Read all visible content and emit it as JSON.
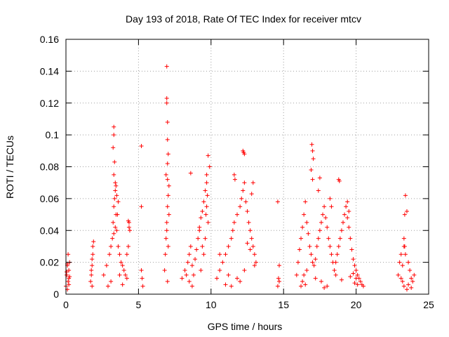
{
  "chart_data": {
    "type": "scatter",
    "title": "Day 193 of 2018, Rate Of TEC Index for receiver mtcv",
    "xlabel": "GPS time / hours",
    "ylabel": "ROTI / TECUs",
    "xlim": [
      0,
      25
    ],
    "ylim": [
      0,
      0.16
    ],
    "xticks": [
      0,
      5,
      10,
      15,
      20,
      25
    ],
    "xtick_labels": [
      "0",
      "5",
      "10",
      "15",
      "20",
      "25"
    ],
    "yticks": [
      0,
      0.02,
      0.04,
      0.06,
      0.08,
      0.1,
      0.12,
      0.14,
      0.16
    ],
    "ytick_labels": [
      "0",
      "0.02",
      "0.04",
      "0.06",
      "0.08",
      "0.1",
      "0.12",
      "0.14",
      "0.16"
    ],
    "grid": true,
    "marker": "+",
    "marker_color": "#ff0000",
    "series": [
      {
        "name": "ROTI",
        "x": [
          0.0,
          0.05,
          0.1,
          0.15,
          0.2,
          0.25,
          0.1,
          0.2,
          0.15,
          0.05,
          0.2,
          0.1,
          0.25,
          1.7,
          1.75,
          1.8,
          1.85,
          1.9,
          1.8,
          1.75,
          1.85,
          1.8,
          2.6,
          2.8,
          3.0,
          3.1,
          3.2,
          3.25,
          3.3,
          3.35,
          3.4,
          3.45,
          3.5,
          3.6,
          3.7,
          3.8,
          3.9,
          4.0,
          4.1,
          4.2,
          4.3,
          4.35,
          4.4,
          3.3,
          3.3,
          3.25,
          3.35,
          3.3,
          3.4,
          3.5,
          3.45,
          3.6,
          3.55,
          3.4,
          3.3,
          4.3,
          4.35,
          4.2,
          2.9,
          3.1,
          3.7,
          3.9,
          5.2,
          5.2,
          5.2,
          5.25,
          5.3,
          6.8,
          6.85,
          6.9,
          6.95,
          7.0,
          7.05,
          7.1,
          6.95,
          6.95,
          6.95,
          7.0,
          7.0,
          7.05,
          7.0,
          6.9,
          7.1,
          7.0,
          6.95,
          7.05,
          7.0,
          8.0,
          8.2,
          8.4,
          8.5,
          8.6,
          8.7,
          8.8,
          8.9,
          9.0,
          9.1,
          9.2,
          9.3,
          9.4,
          9.5,
          9.6,
          9.7,
          9.8,
          9.9,
          9.7,
          9.75,
          9.7,
          9.65,
          9.8,
          9.6,
          8.6,
          8.7,
          9.2,
          9.4,
          9.5,
          9.3,
          8.5,
          8.3,
          10.4,
          10.6,
          10.8,
          11.0,
          11.2,
          11.4,
          11.5,
          11.6,
          11.8,
          12.0,
          12.1,
          12.2,
          12.3,
          12.4,
          12.5,
          12.6,
          12.7,
          12.8,
          12.9,
          13.0,
          13.1,
          12.2,
          12.25,
          12.3,
          11.6,
          11.65,
          12.8,
          12.9,
          12.3,
          12.0,
          11.0,
          11.2,
          10.6,
          12.5,
          12.7,
          13.0,
          11.8,
          11.4,
          14.6,
          14.7,
          14.65,
          14.7,
          14.6,
          15.9,
          16.0,
          16.1,
          16.2,
          16.3,
          16.4,
          16.5,
          16.6,
          16.7,
          16.8,
          16.9,
          17.0,
          17.1,
          17.2,
          17.3,
          17.4,
          17.5,
          17.6,
          17.7,
          17.8,
          17.9,
          18.0,
          18.1,
          18.2,
          18.3,
          18.4,
          18.5,
          18.6,
          18.7,
          18.8,
          18.9,
          19.0,
          19.1,
          19.2,
          19.3,
          19.4,
          19.5,
          19.6,
          19.7,
          19.8,
          19.9,
          20.0,
          20.1,
          20.2,
          20.3,
          20.4,
          20.5,
          16.95,
          17.0,
          17.05,
          16.9,
          17.0,
          17.5,
          17.4,
          18.2,
          18.3,
          18.8,
          18.85,
          19.4,
          19.5,
          16.2,
          16.3,
          16.5,
          17.8,
          18.0,
          19.9,
          20.1,
          16.4,
          16.6,
          17.2,
          17.6,
          18.6,
          19.0,
          19.6,
          19.8,
          20.0,
          22.9,
          23.0,
          23.1,
          23.2,
          23.3,
          23.35,
          23.4,
          23.5,
          23.6,
          23.7,
          23.8,
          23.9,
          24.0,
          23.3,
          23.35,
          23.4,
          23.3,
          23.2,
          23.6,
          23.8,
          23.5,
          23.1
        ],
        "y": [
          0.005,
          0.012,
          0.018,
          0.008,
          0.015,
          0.02,
          0.003,
          0.01,
          0.025,
          0.014,
          0.006,
          0.019,
          0.011,
          0.008,
          0.015,
          0.022,
          0.03,
          0.033,
          0.018,
          0.012,
          0.025,
          0.005,
          0.012,
          0.018,
          0.025,
          0.03,
          0.035,
          0.045,
          0.055,
          0.06,
          0.065,
          0.05,
          0.04,
          0.03,
          0.025,
          0.02,
          0.018,
          0.015,
          0.012,
          0.01,
          0.03,
          0.045,
          0.04,
          0.105,
          0.1,
          0.092,
          0.083,
          0.075,
          0.07,
          0.062,
          0.068,
          0.058,
          0.05,
          0.042,
          0.038,
          0.046,
          0.042,
          0.025,
          0.005,
          0.008,
          0.012,
          0.006,
          0.093,
          0.055,
          0.015,
          0.01,
          0.005,
          0.015,
          0.025,
          0.035,
          0.045,
          0.055,
          0.062,
          0.05,
          0.143,
          0.123,
          0.12,
          0.108,
          0.097,
          0.088,
          0.082,
          0.075,
          0.068,
          0.072,
          0.04,
          0.03,
          0.008,
          0.01,
          0.015,
          0.02,
          0.025,
          0.03,
          0.018,
          0.012,
          0.022,
          0.028,
          0.035,
          0.04,
          0.048,
          0.052,
          0.058,
          0.065,
          0.075,
          0.087,
          0.08,
          0.07,
          0.062,
          0.055,
          0.05,
          0.045,
          0.035,
          0.076,
          0.005,
          0.042,
          0.03,
          0.025,
          0.015,
          0.008,
          0.012,
          0.01,
          0.015,
          0.02,
          0.025,
          0.03,
          0.035,
          0.04,
          0.045,
          0.05,
          0.055,
          0.06,
          0.065,
          0.07,
          0.058,
          0.052,
          0.045,
          0.04,
          0.035,
          0.03,
          0.025,
          0.02,
          0.09,
          0.089,
          0.088,
          0.075,
          0.072,
          0.063,
          0.07,
          0.015,
          0.008,
          0.006,
          0.012,
          0.025,
          0.032,
          0.028,
          0.018,
          0.01,
          0.005,
          0.058,
          0.018,
          0.01,
          0.008,
          0.005,
          0.012,
          0.02,
          0.028,
          0.035,
          0.042,
          0.05,
          0.058,
          0.045,
          0.038,
          0.03,
          0.025,
          0.02,
          0.018,
          0.022,
          0.03,
          0.035,
          0.04,
          0.045,
          0.05,
          0.055,
          0.048,
          0.042,
          0.035,
          0.03,
          0.025,
          0.02,
          0.015,
          0.02,
          0.025,
          0.03,
          0.035,
          0.04,
          0.045,
          0.05,
          0.055,
          0.048,
          0.042,
          0.035,
          0.028,
          0.022,
          0.018,
          0.015,
          0.012,
          0.01,
          0.008,
          0.006,
          0.005,
          0.094,
          0.09,
          0.085,
          0.078,
          0.072,
          0.073,
          0.065,
          0.06,
          0.055,
          0.072,
          0.071,
          0.058,
          0.052,
          0.005,
          0.008,
          0.006,
          0.004,
          0.005,
          0.007,
          0.006,
          0.012,
          0.015,
          0.01,
          0.008,
          0.012,
          0.009,
          0.011,
          0.013,
          0.01,
          0.012,
          0.02,
          0.025,
          0.018,
          0.03,
          0.05,
          0.062,
          0.052,
          0.02,
          0.015,
          0.01,
          0.008,
          0.012,
          0.035,
          0.03,
          0.025,
          0.005,
          0.008,
          0.006,
          0.004,
          0.003,
          0.01
        ]
      }
    ]
  }
}
